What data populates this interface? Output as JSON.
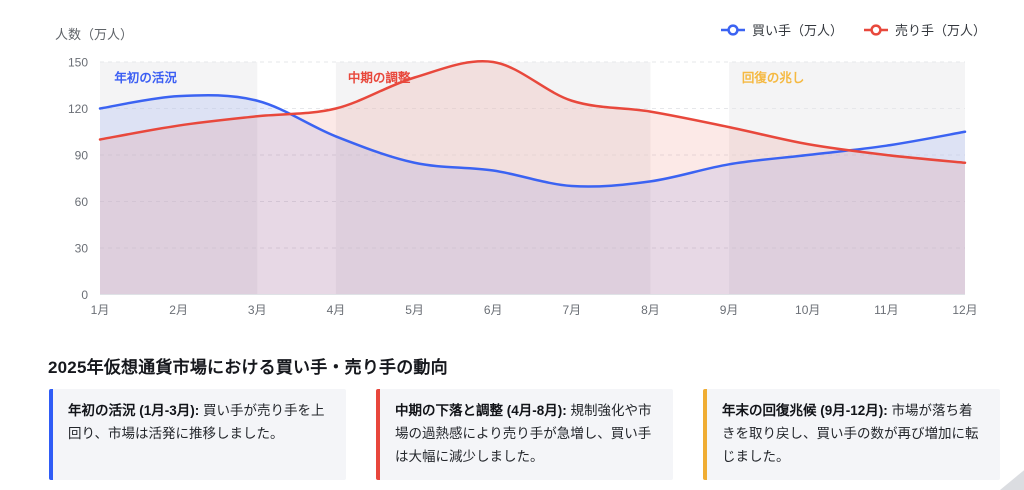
{
  "header": {
    "y_axis_name": "人数（万人）"
  },
  "legend": {
    "items": [
      {
        "label": "買い手（万人）"
      },
      {
        "label": "売り手（万人）"
      }
    ]
  },
  "chart_data": {
    "type": "line",
    "title": "",
    "xlabel": "",
    "ylabel": "人数（万人）",
    "ylim": [
      0,
      150
    ],
    "y_ticks": [
      0,
      30,
      60,
      90,
      120,
      150
    ],
    "grid": "horizontal-dashed",
    "legend_position": "top-right",
    "categories": [
      "1月",
      "2月",
      "3月",
      "4月",
      "5月",
      "6月",
      "7月",
      "8月",
      "9月",
      "10月",
      "11月",
      "12月"
    ],
    "series": [
      {
        "name": "買い手（万人）",
        "color": "#3B63F2",
        "fill": "rgba(59,99,242,0.12)",
        "values": [
          120,
          128,
          125,
          102,
          85,
          80,
          70,
          73,
          84,
          90,
          96,
          105
        ]
      },
      {
        "name": "売り手（万人）",
        "color": "#E8483C",
        "fill": "rgba(232,72,60,0.12)",
        "values": [
          100,
          109,
          115,
          120,
          140,
          150,
          125,
          118,
          108,
          97,
          90,
          85
        ]
      }
    ],
    "bands": [
      {
        "from_month": 0,
        "to_month": 2
      },
      {
        "from_month": 3,
        "to_month": 7
      },
      {
        "from_month": 8,
        "to_month": 11
      }
    ],
    "band_color": "#f4f4f5",
    "annotations": [
      {
        "text": "年初の活況",
        "color": "#3B5EF3",
        "month": 0.58
      },
      {
        "text": "中期の調整",
        "color": "#E8483C",
        "month": 3.55
      },
      {
        "text": "回復の兆し",
        "color": "#F5B942",
        "month": 8.56
      }
    ]
  },
  "section": {
    "title": "2025年仮想通貨市場における買い手・売り手の動向",
    "cards": [
      {
        "accent": "#2F5CF6",
        "lead": "年初の活況 (1月-3月):",
        "body": " 買い手が売り手を上回り、市場は活発に推移しました。"
      },
      {
        "accent": "#E8463C",
        "lead": "中期の下落と調整 (4月-8月):",
        "body": " 規制強化や市場の過熱感により売り手が急増し、買い手は大幅に減少しました。"
      },
      {
        "accent": "#F0AD33",
        "lead": "年末の回復兆候 (9月-12月):",
        "body": " 市場が落ち着きを取り戻し、買い手の数が再び増加に転じました。"
      }
    ]
  }
}
